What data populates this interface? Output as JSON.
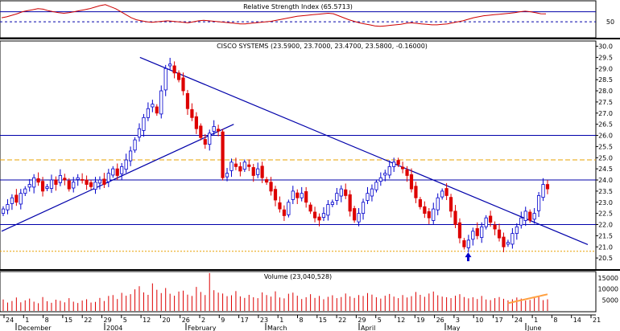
{
  "chart_data": [
    {
      "panel": "rsi",
      "type": "line",
      "title": "Relative Strength Index (65.5713)",
      "yticks": [
        50
      ],
      "ylim": [
        20,
        90
      ],
      "reference_lines": [
        70,
        50
      ],
      "values": [
        58,
        60,
        63,
        66,
        70,
        72,
        74,
        76,
        75,
        72,
        70,
        68,
        67,
        68,
        70,
        72,
        74,
        76,
        79,
        82,
        84,
        80,
        76,
        70,
        64,
        58,
        54,
        52,
        50,
        49,
        50,
        51,
        52,
        51,
        50,
        49,
        48,
        50,
        52,
        53,
        52,
        51,
        50,
        49,
        48,
        47,
        46,
        46,
        47,
        48,
        49,
        50,
        51,
        53,
        55,
        57,
        59,
        61,
        62,
        63,
        64,
        65,
        66,
        67,
        66,
        62,
        58,
        54,
        51,
        48,
        46,
        44,
        42,
        41,
        42,
        43,
        44,
        45,
        47,
        48,
        47,
        46,
        45,
        44,
        44,
        45,
        46,
        48,
        50,
        52,
        55,
        58,
        60,
        62,
        63,
        64,
        65,
        66,
        67,
        68,
        70,
        71,
        70,
        68,
        66,
        65.6
      ]
    },
    {
      "panel": "price",
      "type": "candlestick",
      "title": "CISCO SYSTEMS (23.5900, 23.7000, 23.4700, 23.5800, -0.16000)",
      "yticks": [
        20.5,
        21.0,
        21.5,
        22.0,
        22.5,
        23.0,
        23.5,
        24.0,
        24.5,
        25.0,
        25.5,
        26.0,
        26.5,
        27.0,
        27.5,
        28.0,
        28.5,
        29.0,
        29.5,
        30.0
      ],
      "ylim": [
        20.0,
        30.2
      ],
      "horizontal_lines": [
        26.0,
        24.0,
        22.0
      ],
      "dashed_lines": [
        24.9,
        20.8
      ],
      "trendlines": [
        {
          "from": [
            0,
            21.7
          ],
          "to": [
            99,
            26.5
          ]
        },
        {
          "from": [
            59,
            29.5
          ],
          "to": [
            250,
            21.1
          ]
        }
      ],
      "arrow_label": "↑",
      "arrow_at": [
        199,
        20.5
      ],
      "closes": [
        22.7,
        22.9,
        23.2,
        23.0,
        23.4,
        23.6,
        23.8,
        24.1,
        23.9,
        23.5,
        23.7,
        24.0,
        23.8,
        24.2,
        24.0,
        23.6,
        23.9,
        24.1,
        24.0,
        23.8,
        23.7,
        23.9,
        24.0,
        23.8,
        24.3,
        24.5,
        24.2,
        24.6,
        24.9,
        25.3,
        25.8,
        26.3,
        26.8,
        27.2,
        27.4,
        27.0,
        28.0,
        29.0,
        29.2,
        28.8,
        28.5,
        28.0,
        27.2,
        26.8,
        26.3,
        25.9,
        25.6,
        26.1,
        26.4,
        26.2,
        24.1,
        24.3,
        24.8,
        24.6,
        24.4,
        24.8,
        24.6,
        24.2,
        24.5,
        24.1,
        23.9,
        23.5,
        23.1,
        22.7,
        22.4,
        23.0,
        23.5,
        23.2,
        23.4,
        23.0,
        22.6,
        22.3,
        22.2,
        22.5,
        22.9,
        23.0,
        23.4,
        23.6,
        23.3,
        22.6,
        22.2,
        22.5,
        23.0,
        23.4,
        23.6,
        23.9,
        24.1,
        24.3,
        24.6,
        24.8,
        24.7,
        24.5,
        24.2,
        23.6,
        23.2,
        22.8,
        22.5,
        22.3,
        22.7,
        23.2,
        23.5,
        23.3,
        22.6,
        22.0,
        21.4,
        21.0,
        21.3,
        21.7,
        21.5,
        21.9,
        22.3,
        22.1,
        21.8,
        21.4,
        21.0,
        21.2,
        21.6,
        21.9,
        22.3,
        22.6,
        22.2,
        22.5,
        23.3,
        23.8,
        23.6
      ]
    },
    {
      "panel": "volume",
      "type": "bar",
      "title": "Volume (23,040,528)",
      "yticks": [
        5000,
        10000,
        15000
      ],
      "ylim": [
        0,
        17500
      ],
      "values": [
        5200,
        3800,
        4500,
        6100,
        3900,
        4800,
        5600,
        4200,
        3500,
        6300,
        4400,
        3700,
        5100,
        4600,
        3900,
        5800,
        4200,
        3600,
        4700,
        5300,
        3800,
        4100,
        5900,
        4500,
        6800,
        7200,
        5400,
        8200,
        6900,
        7600,
        9800,
        11200,
        8400,
        7300,
        12500,
        9600,
        8100,
        10400,
        7800,
        6900,
        8800,
        9200,
        7400,
        6800,
        10900,
        8600,
        7200,
        17200,
        9400,
        8300,
        7900,
        6700,
        7100,
        9000,
        6600,
        5900,
        7300,
        6200,
        5800,
        8400,
        7200,
        6500,
        8900,
        6100,
        5700,
        7800,
        8300,
        6900,
        5400,
        6200,
        7600,
        5900,
        6800,
        5300,
        6400,
        7100,
        5800,
        6300,
        7900,
        6600,
        5900,
        7200,
        6800,
        8100,
        7400,
        6200,
        5600,
        6900,
        7700,
        6500,
        5800,
        7200,
        6100,
        6700,
        8600,
        7300,
        6400,
        7900,
        8800,
        7100,
        6500,
        6200,
        5800,
        6900,
        7600,
        6300,
        5700,
        6200,
        5400,
        6800,
        5200,
        4900,
        5800,
        6300,
        5500,
        4800,
        5300,
        6100,
        5600,
        4700,
        5000,
        5800,
        6400,
        4900,
        5300
      ]
    },
    {
      "panel": "xaxis",
      "type": "axis",
      "day_labels": [
        "24",
        "1",
        "8",
        "15",
        "22",
        "29",
        "5",
        "12",
        "20",
        "26",
        "2",
        "9",
        "17",
        "23",
        "1",
        "8",
        "15",
        "22",
        "29",
        "5",
        "12",
        "19",
        "26",
        "3",
        "10",
        "17",
        "24",
        "1",
        "8",
        "14",
        "21"
      ],
      "month_labels": [
        "December",
        "2004",
        "February",
        "March",
        "April",
        "May",
        "June"
      ]
    }
  ],
  "colors": {
    "grid_blue": "#0000aa",
    "rsi_line": "#cc0000",
    "up_candle": "#0000cc",
    "down_candle": "#dd0000",
    "dashed_orange": "#e8a000",
    "volume_bar": "#dd0000",
    "volume_ma": "#ffa040"
  }
}
